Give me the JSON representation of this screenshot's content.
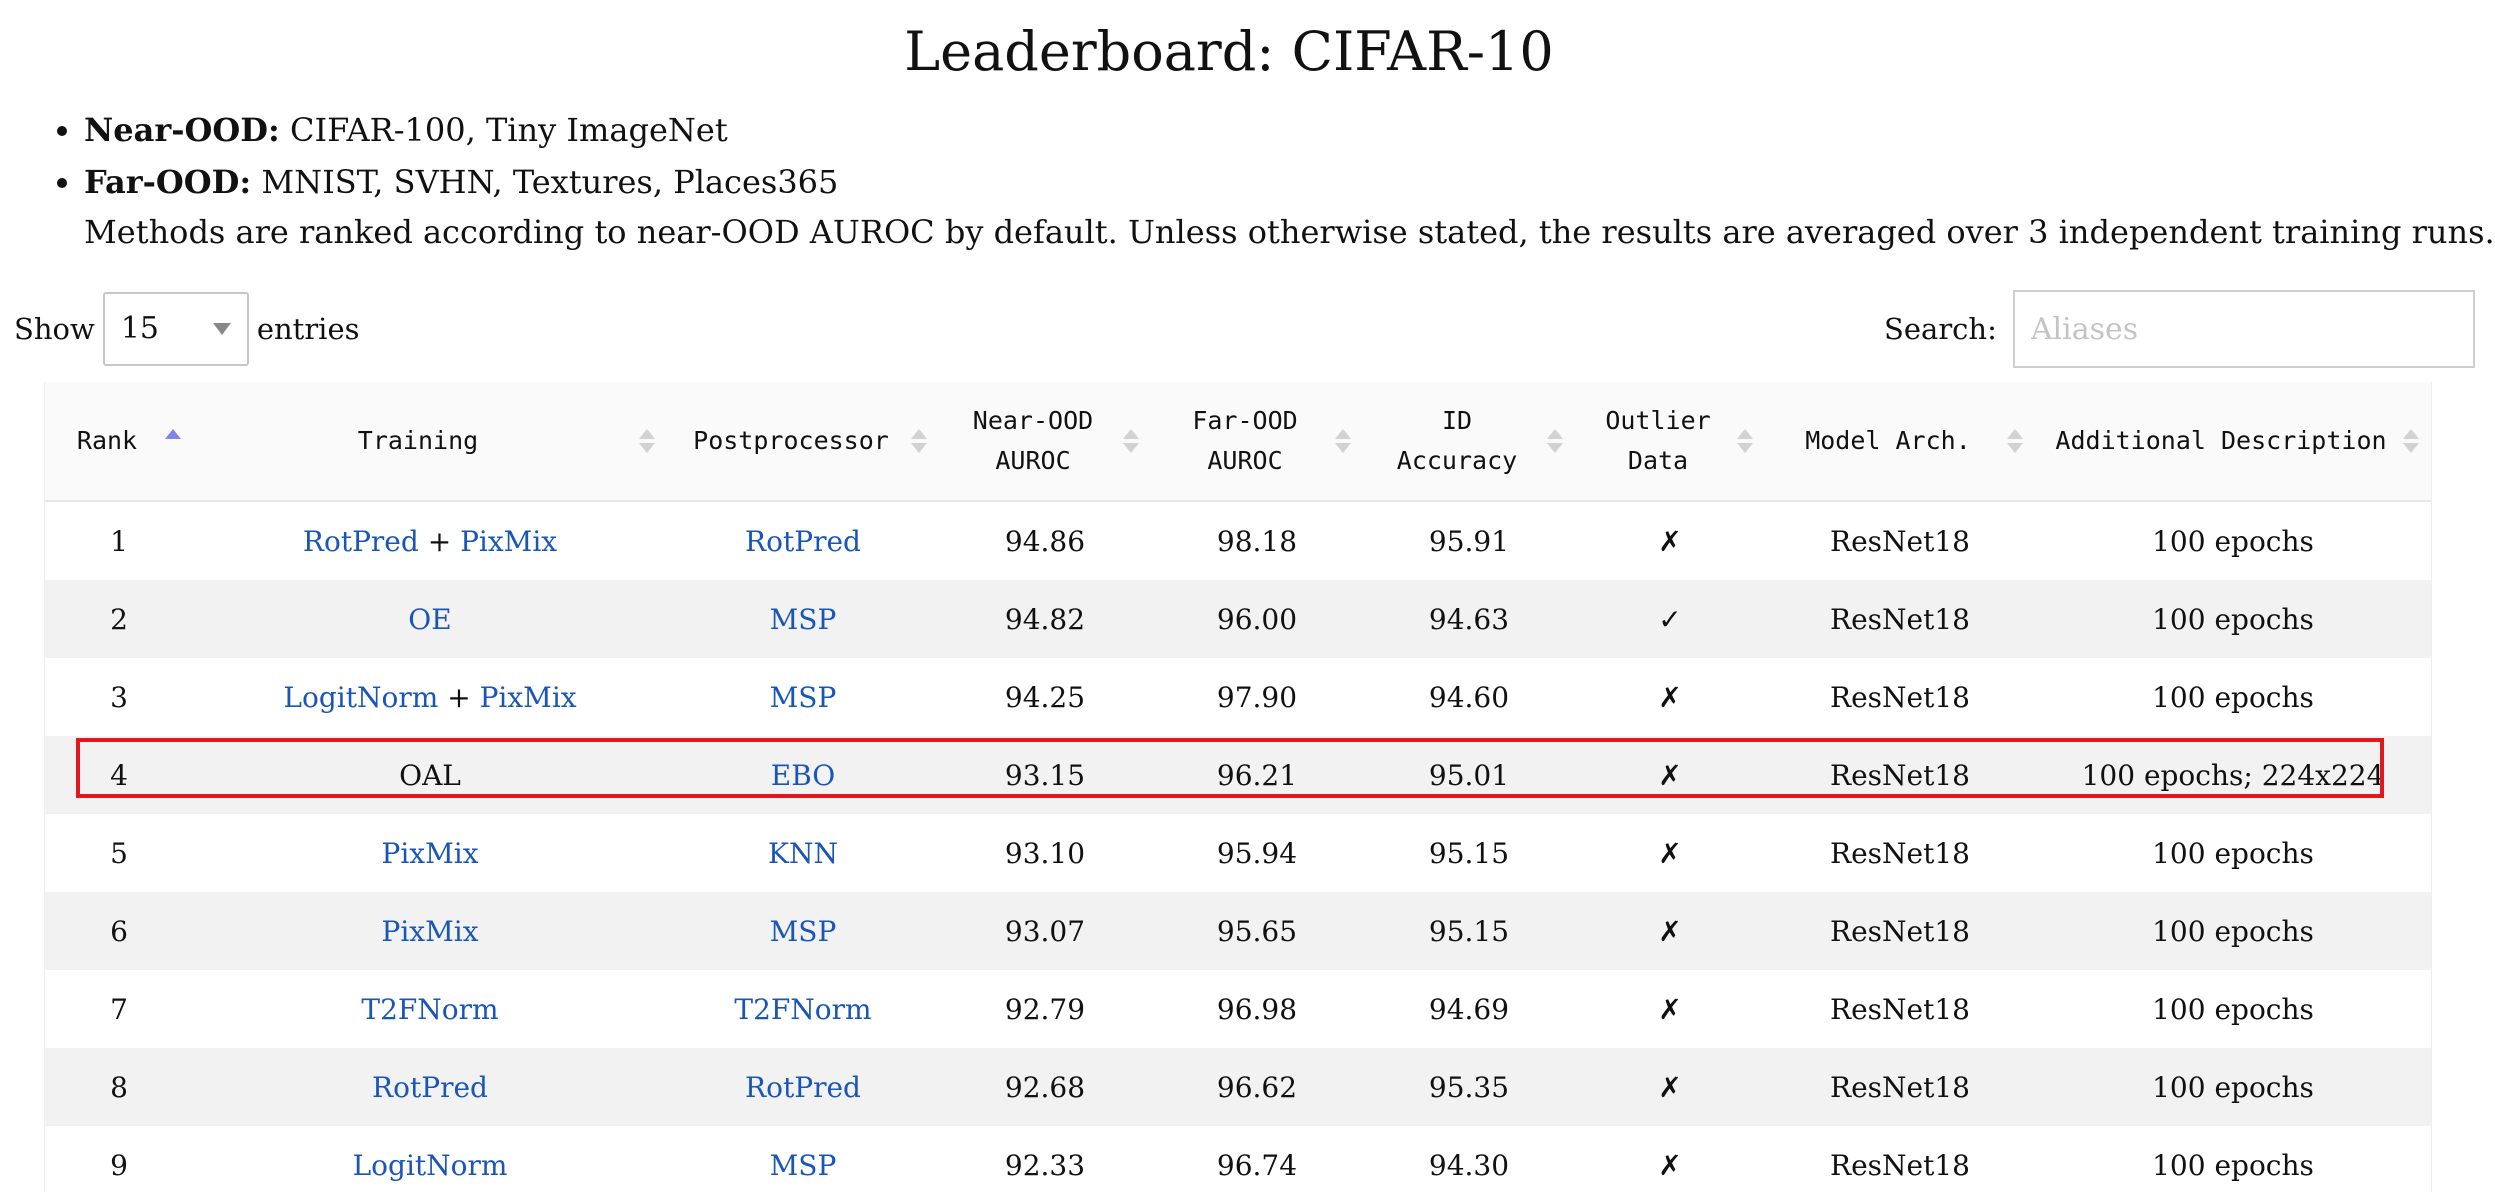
{
  "page": {
    "title": "Leaderboard: CIFAR-10",
    "bullets": [
      {
        "label": "Near-OOD:",
        "text": " CIFAR-100, Tiny ImageNet"
      },
      {
        "label": "Far-OOD:",
        "text": " MNIST, SVHN, Textures, Places365"
      }
    ],
    "note": "Methods are ranked according to near-OOD AUROC by default. Unless otherwise stated, the results are averaged over 3 independent training runs."
  },
  "controls": {
    "show_label": "Show",
    "entries_value": "15",
    "entries_label": "entries",
    "search_label": "Search:",
    "search_placeholder": "Aliases"
  },
  "table": {
    "headers": [
      {
        "line1": "Rank",
        "line2": ""
      },
      {
        "line1": "Training",
        "line2": ""
      },
      {
        "line1": "Postprocessor",
        "line2": ""
      },
      {
        "line1": "Near-OOD",
        "line2": "AUROC"
      },
      {
        "line1": "Far-OOD",
        "line2": "AUROC"
      },
      {
        "line1": "ID",
        "line2": "Accuracy"
      },
      {
        "line1": "Outlier",
        "line2": "Data"
      },
      {
        "line1": "Model Arch.",
        "line2": ""
      },
      {
        "line1": "Additional Description",
        "line2": ""
      }
    ],
    "rows": [
      {
        "rank": "1",
        "training": [
          "RotPred",
          "PixMix"
        ],
        "postprocessor": "RotPred",
        "near_auroc": "94.86",
        "far_auroc": "98.18",
        "id_acc": "95.91",
        "outlier": "✗",
        "arch": "ResNet18",
        "desc": "100 epochs"
      },
      {
        "rank": "2",
        "training": [
          "OE"
        ],
        "postprocessor": "MSP",
        "near_auroc": "94.82",
        "far_auroc": "96.00",
        "id_acc": "94.63",
        "outlier": "✓",
        "arch": "ResNet18",
        "desc": "100 epochs"
      },
      {
        "rank": "3",
        "training": [
          "LogitNorm",
          "PixMix"
        ],
        "postprocessor": "MSP",
        "near_auroc": "94.25",
        "far_auroc": "97.90",
        "id_acc": "94.60",
        "outlier": "✗",
        "arch": "ResNet18",
        "desc": "100 epochs"
      },
      {
        "rank": "4",
        "training_plain": "OAL",
        "postprocessor": "EBO",
        "near_auroc": "93.15",
        "far_auroc": "96.21",
        "id_acc": "95.01",
        "outlier": "✗",
        "arch": "ResNet18",
        "desc": "100 epochs; 224x224"
      },
      {
        "rank": "5",
        "training": [
          "PixMix"
        ],
        "postprocessor": "KNN",
        "near_auroc": "93.10",
        "far_auroc": "95.94",
        "id_acc": "95.15",
        "outlier": "✗",
        "arch": "ResNet18",
        "desc": "100 epochs"
      },
      {
        "rank": "6",
        "training": [
          "PixMix"
        ],
        "postprocessor": "MSP",
        "near_auroc": "93.07",
        "far_auroc": "95.65",
        "id_acc": "95.15",
        "outlier": "✗",
        "arch": "ResNet18",
        "desc": "100 epochs"
      },
      {
        "rank": "7",
        "training": [
          "T2FNorm"
        ],
        "postprocessor": "T2FNorm",
        "near_auroc": "92.79",
        "far_auroc": "96.98",
        "id_acc": "94.69",
        "outlier": "✗",
        "arch": "ResNet18",
        "desc": "100 epochs"
      },
      {
        "rank": "8",
        "training": [
          "RotPred"
        ],
        "postprocessor": "RotPred",
        "near_auroc": "92.68",
        "far_auroc": "96.62",
        "id_acc": "95.35",
        "outlier": "✗",
        "arch": "ResNet18",
        "desc": "100 epochs"
      },
      {
        "rank": "9",
        "training": [
          "LogitNorm"
        ],
        "postprocessor": "MSP",
        "near_auroc": "92.33",
        "far_auroc": "96.74",
        "id_acc": "94.30",
        "outlier": "✗",
        "arch": "ResNet18",
        "desc": "100 epochs"
      }
    ],
    "plus_sign": " + "
  },
  "colors": {
    "link": "#1a56b8",
    "highlight": "#e0191e",
    "sort_active": "#7d86e8"
  }
}
